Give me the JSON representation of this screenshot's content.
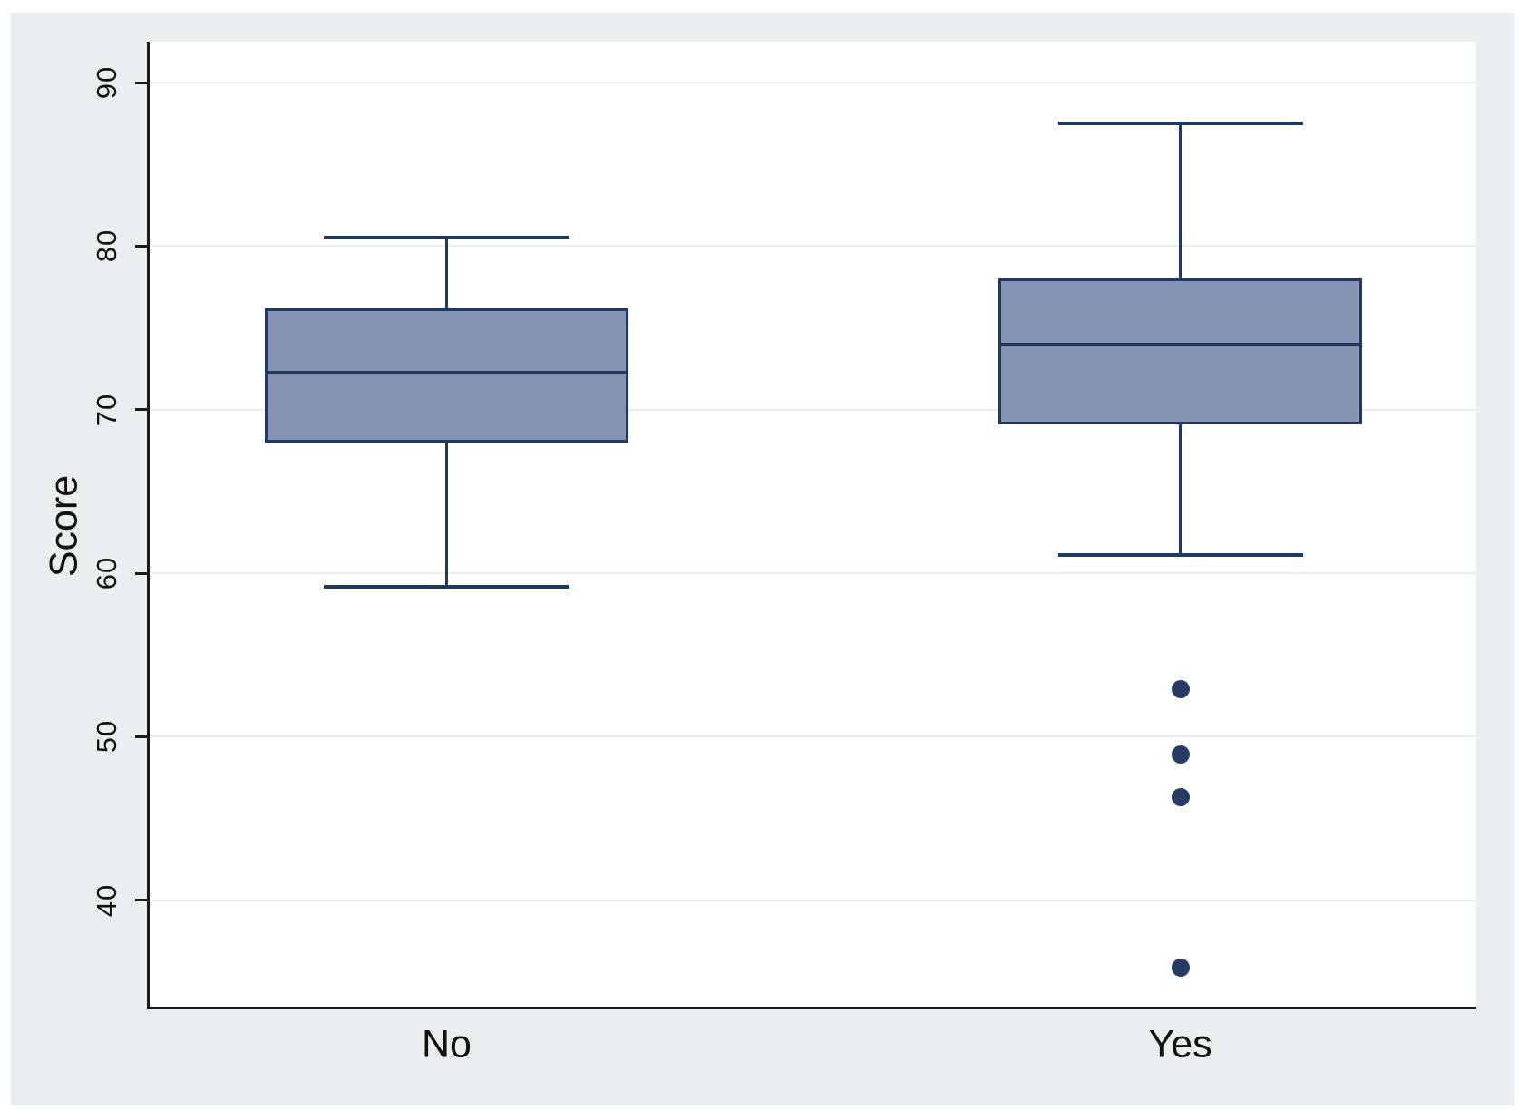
{
  "figure": {
    "background_color": "#e9eef1",
    "plot_background_color": "#ffffff"
  },
  "chart_data": {
    "type": "box",
    "title": "",
    "xlabel": "",
    "ylabel": "Score",
    "categories": [
      "No",
      "Yes"
    ],
    "yticks": [
      40,
      50,
      60,
      70,
      80,
      90
    ],
    "ylim": [
      33.5,
      92.5
    ],
    "grid": "horizontal-only",
    "legend": "none",
    "series": [
      {
        "category": "No",
        "lower_whisker": 59.2,
        "q1": 68.0,
        "median": 72.3,
        "q3": 76.2,
        "upper_whisker": 80.5,
        "outliers": []
      },
      {
        "category": "Yes",
        "lower_whisker": 61.1,
        "q1": 69.1,
        "median": 74.0,
        "q3": 78.0,
        "upper_whisker": 87.5,
        "outliers": [
          52.9,
          48.9,
          46.3,
          35.9
        ]
      }
    ],
    "colors": {
      "box_fill": "#8494b2",
      "box_border": "#1e3a63",
      "median_line": "#1e3a63",
      "whisker": "#1e3a63",
      "outlier": "#263c66",
      "gridline": "#e8eef3",
      "axis_line": "#1a1a1a",
      "text": "#111111"
    }
  }
}
